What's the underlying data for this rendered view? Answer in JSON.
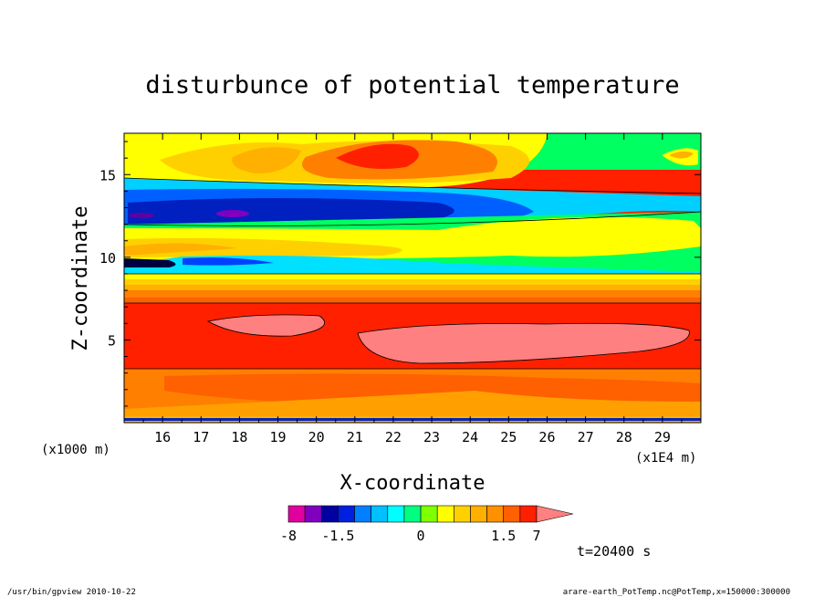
{
  "chart_data": {
    "type": "heatmap",
    "title": "disturbunce of potential temperature",
    "xlabel": "X-coordinate",
    "ylabel": "Z-coordinate",
    "x_scale_left": "(x1000 m)",
    "x_scale_right": "(x1E4 m)",
    "xticks": [
      "16",
      "17",
      "18",
      "19",
      "20",
      "21",
      "22",
      "23",
      "24",
      "25",
      "26",
      "27",
      "28",
      "29"
    ],
    "yticks": [
      "5",
      "10",
      "15"
    ],
    "xlim": [
      15.0,
      30.0
    ],
    "ylim": [
      0.0,
      17.5
    ],
    "time_label": "t=20400 s",
    "colorbar": {
      "labels": [
        "-8",
        "-1.5",
        "0",
        "1.5",
        "7"
      ],
      "levels": [
        -8,
        -5,
        -2,
        -1.5,
        -1.2,
        -0.9,
        -0.6,
        -0.3,
        0,
        0.3,
        0.6,
        0.9,
        1.2,
        1.5,
        2,
        5,
        7
      ],
      "colors": [
        "#e000a0",
        "#8000c0",
        "#0000a0",
        "#0020e0",
        "#0080ff",
        "#00c0ff",
        "#00ffff",
        "#00ff80",
        "#80ff00",
        "#ffff00",
        "#ffd000",
        "#ffb000",
        "#ff9000",
        "#ff6000",
        "#ff2000",
        "#ff8080"
      ]
    },
    "footer_left": "/usr/bin/gpview   2010-10-22",
    "footer_right": "arare-earth_PotTemp.nc@PotTemp,x=150000:300000"
  }
}
